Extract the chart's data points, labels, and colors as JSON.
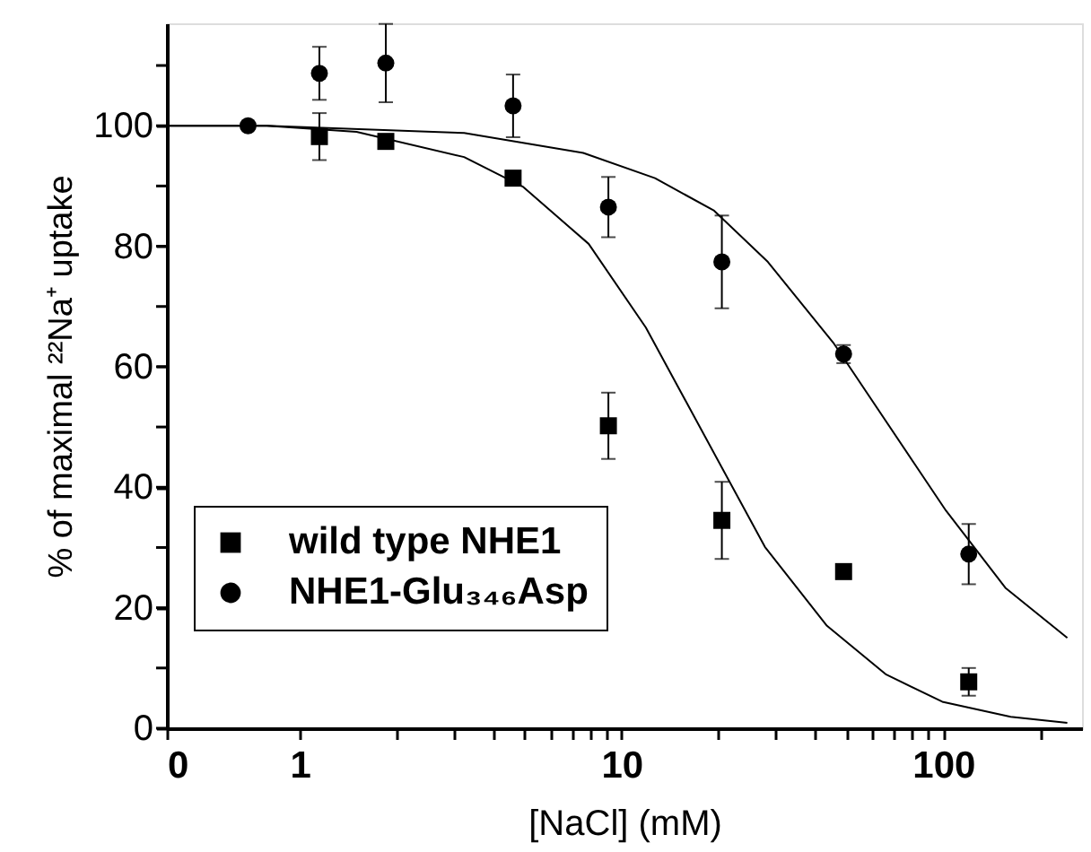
{
  "chart_data": {
    "type": "scatter",
    "xlabel": "[NaCl] (mM)",
    "ylabel": "% of maximal ²²Na⁺ uptake",
    "log": "x",
    "grid": false,
    "legend": "bottom left",
    "xlim": [
      0.386,
      270
    ],
    "xticks": [
      {
        "value": 0.386,
        "label": "0"
      },
      1,
      {
        "value": 2,
        "label": null
      },
      {
        "value": 3,
        "label": null
      },
      {
        "value": 4,
        "label": null
      },
      {
        "value": 5,
        "label": null
      },
      {
        "value": 6,
        "label": null
      },
      {
        "value": 7,
        "label": null
      },
      {
        "value": 8,
        "label": null
      },
      {
        "value": 9,
        "label": null
      },
      10,
      {
        "value": 20,
        "label": null
      },
      {
        "value": 30,
        "label": null
      },
      {
        "value": 40,
        "label": null
      },
      {
        "value": 50,
        "label": null
      },
      {
        "value": 60,
        "label": null
      },
      {
        "value": 70,
        "label": null
      },
      {
        "value": 80,
        "label": null
      },
      {
        "value": 90,
        "label": null
      },
      100,
      {
        "value": 200,
        "label": null
      }
    ],
    "ylim": [
      0,
      117
    ],
    "yticks": [
      0,
      {
        "value": 10,
        "label": null
      },
      20,
      {
        "value": 30,
        "label": null
      },
      40,
      {
        "value": 50,
        "label": null
      },
      60,
      {
        "value": 70,
        "label": null
      },
      80,
      {
        "value": 90,
        "label": null
      },
      100,
      {
        "value": 110,
        "label": null
      }
    ],
    "series": [
      {
        "name": "wild type NHE1",
        "marker": "square",
        "color": "#000000",
        "x": [
          1.15,
          1.85,
          4.6,
          9.1,
          20.5,
          49,
          120
        ],
        "values": [
          98.2,
          97.4,
          91.3,
          50.2,
          34.5,
          26,
          7.7
        ],
        "errors": [
          3.9,
          null,
          null,
          5.5,
          6.4,
          null,
          2.3
        ]
      },
      {
        "name": "NHE1-Glu₃₄₆Asp",
        "marker": "circle",
        "color": "#000000",
        "x": [
          0.69,
          1.15,
          1.85,
          4.6,
          9.1,
          20.5,
          49,
          120
        ],
        "values": [
          100,
          108.7,
          110.4,
          103.3,
          86.5,
          77.4,
          62.1,
          28.9
        ],
        "errors": [
          null,
          4.4,
          6.5,
          5.2,
          5,
          7.7,
          1.5,
          5
        ]
      },
      {
        "type": "line",
        "color": "#000000",
        "x": [
          0.386,
          0.79,
          1.5,
          3.24,
          4.93,
          7.9,
          11.9,
          27.9,
          43.5,
          66.5,
          99.3,
          162,
          243
        ],
        "values": [
          100,
          100,
          99,
          94.8,
          89.9,
          80.4,
          66.5,
          30.1,
          17,
          8.9,
          4.4,
          1.9,
          0.9
        ]
      },
      {
        "type": "line",
        "color": "#000000",
        "x": [
          0.386,
          0.79,
          3.24,
          7.6,
          12.7,
          19.4,
          28.5,
          45.5,
          102,
          156,
          243
        ],
        "values": [
          100,
          100,
          98.8,
          95.5,
          91.3,
          85.9,
          77.4,
          64,
          36.1,
          23.3,
          15
        ]
      }
    ]
  }
}
